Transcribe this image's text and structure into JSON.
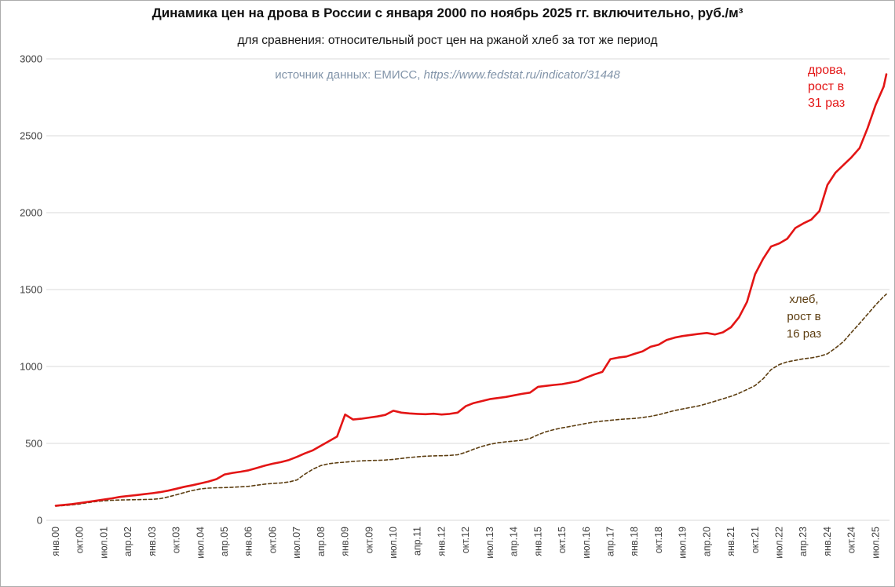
{
  "header": {
    "title": "Динамика цен на дрова в России с января 2000 по ноябрь 2025 гг. включительно, руб./м³",
    "subtitle": "для сравнения: относительный рост цен на ржаной хлеб за тот же период",
    "source_prefix": "источник данных: ЕМИСС, ",
    "source_url": "https://www.fedstat.ru/indicator/31448"
  },
  "annotations": {
    "firewood": {
      "text": "дрова,\nрост в\n31 раз",
      "color": "#e31515"
    },
    "bread": {
      "text": "хлеб,\nрост в\n16 раз",
      "color": "#5c3d10"
    }
  },
  "colors": {
    "grid": "#d9d9d9",
    "axis_text": "#3f3f3f",
    "source_text": "#8294a9"
  },
  "chart_data": {
    "type": "line",
    "title": "Динамика цен на дрова в России с января 2000 по ноябрь 2025 гг. включительно, руб./м³",
    "subtitle": "для сравнения: относительный рост цен на ржаной хлеб за тот же период",
    "source": "источник данных: ЕМИСС, https://www.fedstat.ru/indicator/31448",
    "xlabel": "",
    "ylabel": "",
    "ylim": [
      0,
      3000
    ],
    "y_ticks": [
      0,
      500,
      1000,
      1500,
      2000,
      2500,
      3000
    ],
    "grid": true,
    "x_tick_labels": [
      "янв.00",
      "окт.00",
      "июл.01",
      "апр.02",
      "янв.03",
      "окт.03",
      "июл.04",
      "апр.05",
      "янв.06",
      "окт.06",
      "июл.07",
      "апр.08",
      "янв.09",
      "окт.09",
      "июл.10",
      "апр.11",
      "янв.12",
      "окт.12",
      "июл.13",
      "апр.14",
      "янв.15",
      "окт.15",
      "июл.16",
      "апр.17",
      "янв.18",
      "окт.18",
      "июл.19",
      "апр.20",
      "янв.21",
      "окт.21",
      "июл.22",
      "апр.23",
      "янв.24",
      "окт.24",
      "июл.25"
    ],
    "x_tick_month_step": 9,
    "x_total_months": 310,
    "month_step": 3,
    "series": [
      {
        "key": "firewood",
        "name": "дрова",
        "growth": "рост в 31 раз",
        "color": "#e31515",
        "width": 2.6,
        "dash": null,
        "values": [
          95,
          100,
          105,
          112,
          120,
          127,
          135,
          143,
          152,
          158,
          164,
          170,
          176,
          183,
          193,
          205,
          218,
          228,
          240,
          252,
          268,
          298,
          308,
          316,
          325,
          340,
          355,
          368,
          378,
          392,
          412,
          435,
          455,
          485,
          515,
          545,
          688,
          655,
          660,
          668,
          675,
          685,
          712,
          700,
          695,
          692,
          690,
          693,
          688,
          692,
          700,
          742,
          762,
          775,
          788,
          795,
          802,
          812,
          822,
          830,
          868,
          874,
          880,
          885,
          895,
          905,
          928,
          948,
          965,
          1048,
          1058,
          1065,
          1082,
          1098,
          1128,
          1142,
          1172,
          1188,
          1198,
          1205,
          1212,
          1218,
          1208,
          1222,
          1255,
          1320,
          1420,
          1600,
          1700,
          1780,
          1800,
          1830,
          1900,
          1930,
          1955,
          2010,
          2180,
          2260,
          2310,
          2360,
          2420,
          2550,
          2700,
          2820,
          2900
        ]
      },
      {
        "key": "bread",
        "name": "хлеб",
        "growth": "рост в 16 раз",
        "color": "#5c3d10",
        "width": 1.6,
        "dash": "4 3",
        "values": [
          92,
          96,
          100,
          106,
          115,
          122,
          127,
          130,
          132,
          133,
          134,
          135,
          136,
          141,
          152,
          166,
          180,
          194,
          204,
          209,
          211,
          213,
          215,
          218,
          221,
          228,
          235,
          240,
          243,
          249,
          262,
          300,
          332,
          356,
          368,
          374,
          378,
          383,
          386,
          389,
          390,
          392,
          396,
          402,
          408,
          413,
          417,
          419,
          420,
          422,
          426,
          442,
          462,
          480,
          494,
          504,
          510,
          515,
          521,
          532,
          556,
          576,
          590,
          601,
          610,
          620,
          630,
          639,
          645,
          650,
          655,
          659,
          662,
          668,
          676,
          686,
          700,
          714,
          724,
          734,
          744,
          758,
          774,
          790,
          806,
          826,
          850,
          876,
          920,
          980,
          1012,
          1030,
          1040,
          1050,
          1056,
          1066,
          1082,
          1120,
          1162,
          1222,
          1280,
          1340,
          1400,
          1455,
          1470
        ]
      }
    ]
  }
}
